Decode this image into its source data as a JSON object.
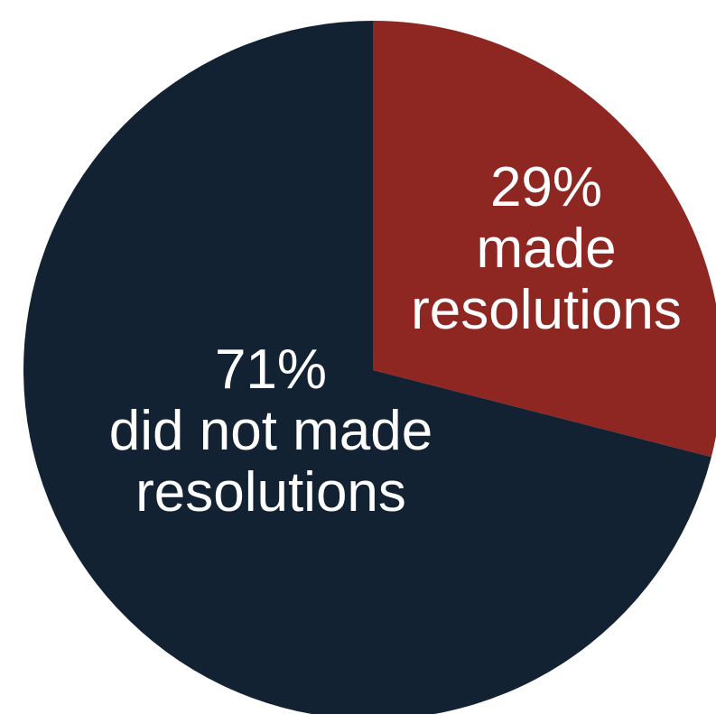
{
  "chart_data": {
    "type": "pie",
    "title": "",
    "slices": [
      {
        "value": 29,
        "percent_label": "29%",
        "label_lines": [
          "made",
          "resolutions"
        ],
        "color": "#8e2622"
      },
      {
        "value": 71,
        "percent_label": "71%",
        "label_lines": [
          "did not made",
          "resolutions"
        ],
        "color": "#132233"
      }
    ],
    "start_angle_deg": 0,
    "direction": "clockwise",
    "legend": "none",
    "labels_inside_slices": true
  }
}
